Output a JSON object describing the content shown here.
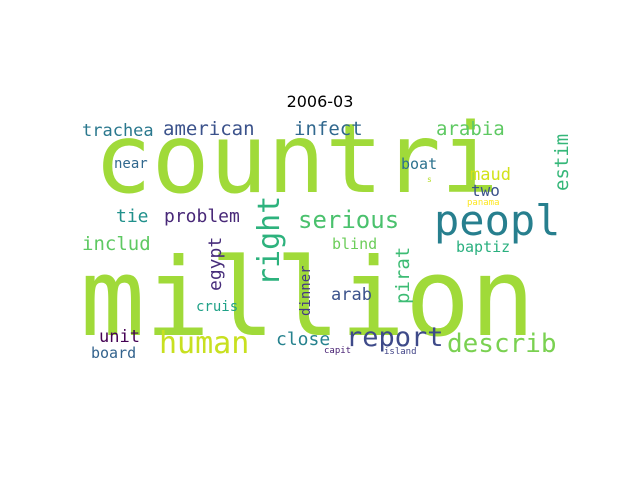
{
  "title": "2006-03",
  "words": [
    {
      "text": "countri",
      "color": "#a0da39",
      "vertical": false
    },
    {
      "text": "million",
      "color": "#a0da39",
      "vertical": false
    },
    {
      "text": "peopl",
      "color": "#277f8e",
      "vertical": false
    },
    {
      "text": "human",
      "color": "#c8e020",
      "vertical": false
    },
    {
      "text": "report",
      "color": "#3e4a89",
      "vertical": false
    },
    {
      "text": "describ",
      "color": "#7ad151",
      "vertical": false
    },
    {
      "text": "serious",
      "color": "#4ac16d",
      "vertical": false
    },
    {
      "text": "right",
      "color": "#2db27d",
      "vertical": true
    },
    {
      "text": "american",
      "color": "#3b528b",
      "vertical": false
    },
    {
      "text": "infect",
      "color": "#31688e",
      "vertical": false
    },
    {
      "text": "arabia",
      "color": "#5ec962",
      "vertical": false
    },
    {
      "text": "estim",
      "color": "#35b779",
      "vertical": true
    },
    {
      "text": "trachea",
      "color": "#2a788e",
      "vertical": false
    },
    {
      "text": "near",
      "color": "#31688e",
      "vertical": false
    },
    {
      "text": "boat",
      "color": "#2c728e",
      "vertical": false
    },
    {
      "text": "maud",
      "color": "#d2e21b",
      "vertical": false
    },
    {
      "text": "two",
      "color": "#3b528b",
      "vertical": false
    },
    {
      "text": "panama",
      "color": "#fde725",
      "vertical": false
    },
    {
      "text": "s",
      "color": "#b5de2b",
      "vertical": false
    },
    {
      "text": "tie",
      "color": "#21918c",
      "vertical": false
    },
    {
      "text": "problem",
      "color": "#482878",
      "vertical": false
    },
    {
      "text": "includ",
      "color": "#5ec962",
      "vertical": false
    },
    {
      "text": "egypt",
      "color": "#472d7b",
      "vertical": true
    },
    {
      "text": "blind",
      "color": "#6ccd5a",
      "vertical": false
    },
    {
      "text": "baptiz",
      "color": "#2ab07f",
      "vertical": false
    },
    {
      "text": "pirat",
      "color": "#3dbc74",
      "vertical": true
    },
    {
      "text": "arab",
      "color": "#3b528b",
      "vertical": false
    },
    {
      "text": "dinner",
      "color": "#443983",
      "vertical": true
    },
    {
      "text": "cruis",
      "color": "#1fa187",
      "vertical": false
    },
    {
      "text": "unit",
      "color": "#440154",
      "vertical": false
    },
    {
      "text": "close",
      "color": "#26828e",
      "vertical": false
    },
    {
      "text": "board",
      "color": "#33638d",
      "vertical": false
    },
    {
      "text": "capit",
      "color": "#482173",
      "vertical": false
    },
    {
      "text": "island",
      "color": "#414487",
      "vertical": false
    }
  ]
}
